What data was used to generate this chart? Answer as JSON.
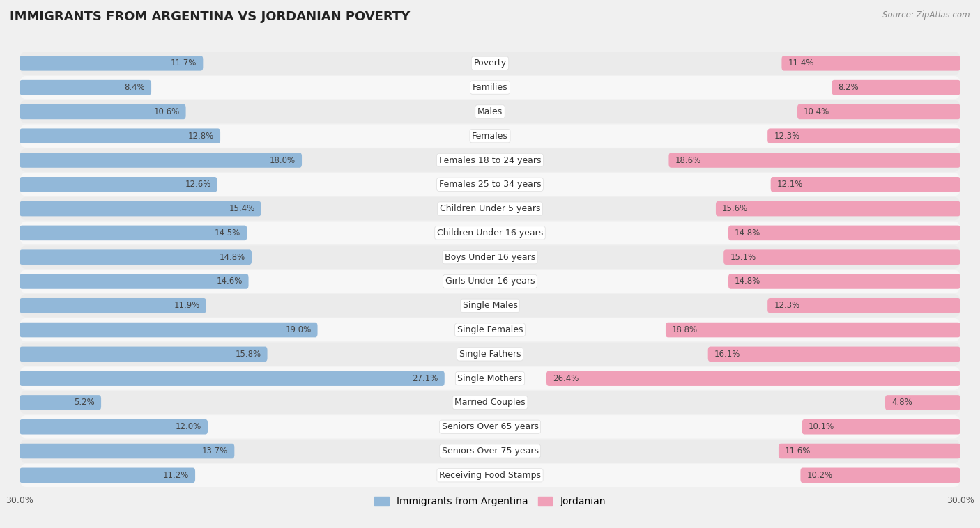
{
  "title": "IMMIGRANTS FROM ARGENTINA VS JORDANIAN POVERTY",
  "source": "Source: ZipAtlas.com",
  "categories": [
    "Poverty",
    "Families",
    "Males",
    "Females",
    "Females 18 to 24 years",
    "Females 25 to 34 years",
    "Children Under 5 years",
    "Children Under 16 years",
    "Boys Under 16 years",
    "Girls Under 16 years",
    "Single Males",
    "Single Females",
    "Single Fathers",
    "Single Mothers",
    "Married Couples",
    "Seniors Over 65 years",
    "Seniors Over 75 years",
    "Receiving Food Stamps"
  ],
  "argentina_values": [
    11.7,
    8.4,
    10.6,
    12.8,
    18.0,
    12.6,
    15.4,
    14.5,
    14.8,
    14.6,
    11.9,
    19.0,
    15.8,
    27.1,
    5.2,
    12.0,
    13.7,
    11.2
  ],
  "jordanian_values": [
    11.4,
    8.2,
    10.4,
    12.3,
    18.6,
    12.1,
    15.6,
    14.8,
    15.1,
    14.8,
    12.3,
    18.8,
    16.1,
    26.4,
    4.8,
    10.1,
    11.6,
    10.2
  ],
  "argentina_color": "#92b8d9",
  "jordanian_color": "#f0a0b8",
  "row_color_odd": "#ebebeb",
  "row_color_even": "#f7f7f7",
  "background_color": "#f0f0f0",
  "xlim": 30.0,
  "bar_height": 0.62,
  "label_fontsize": 9.0,
  "title_fontsize": 13,
  "legend_fontsize": 10,
  "value_fontsize": 8.5
}
